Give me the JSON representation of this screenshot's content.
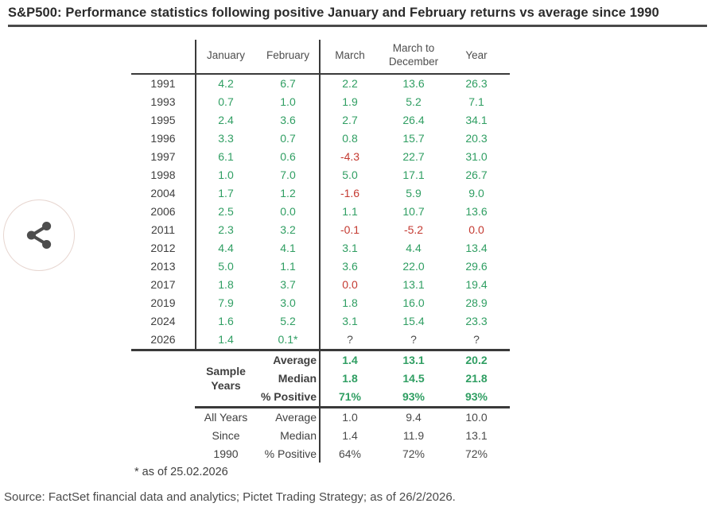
{
  "title": "S&P500: Performance statistics following positive January and February returns vs average since 1990",
  "icons": {
    "share": "share-icon"
  },
  "colors": {
    "positive": "#2f9e62",
    "negative": "#c43a31",
    "neutral": "#4a4a4a",
    "rule": "#3a3a3a",
    "share_circle_border": "#e7d6d0"
  },
  "source": "Source: FactSet financial data and analytics; Pictet Trading Strategy; as of 26/2/2026.",
  "chart_data": {
    "type": "table",
    "title": "S&P500: Performance statistics following positive January and February returns vs average since 1990",
    "col_headers": [
      "January",
      "February",
      "March",
      "March to December",
      "Year"
    ],
    "rows": [
      {
        "year": "1991",
        "values": [
          "4.2",
          "6.7",
          "2.2",
          "13.6",
          "26.3"
        ],
        "colors": [
          "p",
          "p",
          "p",
          "p",
          "p"
        ]
      },
      {
        "year": "1993",
        "values": [
          "0.7",
          "1.0",
          "1.9",
          "5.2",
          "7.1"
        ],
        "colors": [
          "p",
          "p",
          "p",
          "p",
          "p"
        ]
      },
      {
        "year": "1995",
        "values": [
          "2.4",
          "3.6",
          "2.7",
          "26.4",
          "34.1"
        ],
        "colors": [
          "p",
          "p",
          "p",
          "p",
          "p"
        ]
      },
      {
        "year": "1996",
        "values": [
          "3.3",
          "0.7",
          "0.8",
          "15.7",
          "20.3"
        ],
        "colors": [
          "p",
          "p",
          "p",
          "p",
          "p"
        ]
      },
      {
        "year": "1997",
        "values": [
          "6.1",
          "0.6",
          "-4.3",
          "22.7",
          "31.0"
        ],
        "colors": [
          "p",
          "p",
          "n",
          "p",
          "p"
        ]
      },
      {
        "year": "1998",
        "values": [
          "1.0",
          "7.0",
          "5.0",
          "17.1",
          "26.7"
        ],
        "colors": [
          "p",
          "p",
          "p",
          "p",
          "p"
        ]
      },
      {
        "year": "2004",
        "values": [
          "1.7",
          "1.2",
          "-1.6",
          "5.9",
          "9.0"
        ],
        "colors": [
          "p",
          "p",
          "n",
          "p",
          "p"
        ]
      },
      {
        "year": "2006",
        "values": [
          "2.5",
          "0.0",
          "1.1",
          "10.7",
          "13.6"
        ],
        "colors": [
          "p",
          "p",
          "p",
          "p",
          "p"
        ]
      },
      {
        "year": "2011",
        "values": [
          "2.3",
          "3.2",
          "-0.1",
          "-5.2",
          "0.0"
        ],
        "colors": [
          "p",
          "p",
          "n",
          "n",
          "n"
        ]
      },
      {
        "year": "2012",
        "values": [
          "4.4",
          "4.1",
          "3.1",
          "4.4",
          "13.4"
        ],
        "colors": [
          "p",
          "p",
          "p",
          "p",
          "p"
        ]
      },
      {
        "year": "2013",
        "values": [
          "5.0",
          "1.1",
          "3.6",
          "22.0",
          "29.6"
        ],
        "colors": [
          "p",
          "p",
          "p",
          "p",
          "p"
        ]
      },
      {
        "year": "2017",
        "values": [
          "1.8",
          "3.7",
          "0.0",
          "13.1",
          "19.4"
        ],
        "colors": [
          "p",
          "p",
          "n",
          "p",
          "p"
        ]
      },
      {
        "year": "2019",
        "values": [
          "7.9",
          "3.0",
          "1.8",
          "16.0",
          "28.9"
        ],
        "colors": [
          "p",
          "p",
          "p",
          "p",
          "p"
        ]
      },
      {
        "year": "2024",
        "values": [
          "1.6",
          "5.2",
          "3.1",
          "15.4",
          "23.3"
        ],
        "colors": [
          "p",
          "p",
          "p",
          "p",
          "p"
        ]
      },
      {
        "year": "2026",
        "values": [
          "1.4",
          "0.1*",
          "?",
          "?",
          "?"
        ],
        "colors": [
          "p",
          "p",
          "x",
          "x",
          "x"
        ]
      }
    ],
    "sample": {
      "label_line1": "Sample",
      "label_line2": "Years",
      "rows": [
        {
          "label": "Average",
          "values": [
            "1.4",
            "13.1",
            "20.2"
          ]
        },
        {
          "label": "Median",
          "values": [
            "1.8",
            "14.5",
            "21.8"
          ]
        },
        {
          "label": "% Positive",
          "values": [
            "71%",
            "93%",
            "93%"
          ]
        }
      ]
    },
    "all_years": {
      "rows": [
        {
          "side": "All Years",
          "label": "Average",
          "values": [
            "1.0",
            "9.4",
            "10.0"
          ]
        },
        {
          "side": "Since",
          "label": "Median",
          "values": [
            "1.4",
            "11.9",
            "13.1"
          ]
        },
        {
          "side": "1990",
          "label": "% Positive",
          "values": [
            "64%",
            "72%",
            "72%"
          ]
        }
      ]
    },
    "footnote": "* as of 25.02.2026"
  }
}
